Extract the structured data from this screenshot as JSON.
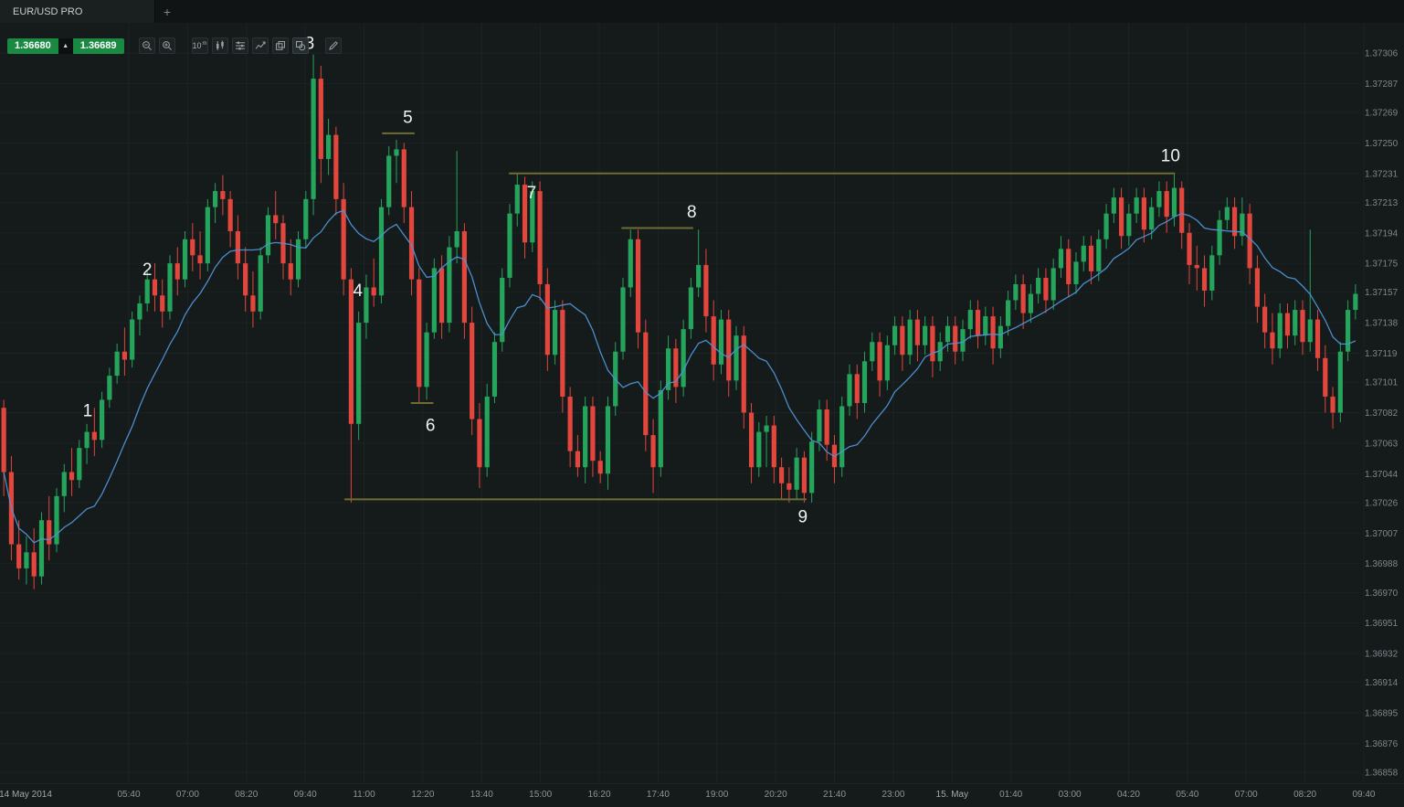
{
  "tab_bar": {
    "tabs": [
      {
        "label": "EUR/USD PRO",
        "active": true
      }
    ],
    "new_tab_label": "+"
  },
  "quote_widget": {
    "bid": "1.36680",
    "ask": "1.36689",
    "direction": "up",
    "direction_glyph": "▲"
  },
  "toolbar": {
    "buttons": [
      {
        "name": "zoom-out-button",
        "icon": "magnifier-minus",
        "group": 1
      },
      {
        "name": "zoom-in-button",
        "icon": "magnifier-plus",
        "group": 1
      },
      {
        "name": "timeframe-button",
        "icon": "text",
        "label": "10",
        "sup": "m",
        "group": 2
      },
      {
        "name": "chart-type-button",
        "icon": "candlestick",
        "group": 2
      },
      {
        "name": "indicators-button",
        "icon": "sliders",
        "group": 2
      },
      {
        "name": "chart-mode-button",
        "icon": "line-chart",
        "group": 2
      },
      {
        "name": "duplicate-chart-button",
        "icon": "copy",
        "group": 2
      },
      {
        "name": "drawing-tools-button",
        "icon": "shapes",
        "active": true,
        "group": 2
      },
      {
        "name": "edit-button",
        "icon": "pencil",
        "group": 3
      }
    ]
  },
  "colors": {
    "background": "#151a1b",
    "candle_up": "#25a45c",
    "candle_down": "#e2463d",
    "moving_average": "#4f94d6",
    "level_line": "#6e6d33",
    "annotation_text": "#eef1f1",
    "price_label": "#7e868a",
    "time_label": "#8d9498",
    "quote_green": "#1a8a42",
    "grid": "rgba(255,255,255,0.035)"
  },
  "chart_data": {
    "type": "candlestick",
    "instrument": "EUR/USD PRO",
    "timeframe": "10m",
    "price_max": 1.37306,
    "price_min": 1.36858,
    "price_axis_ticks": [
      "1.37306",
      "1.37287",
      "1.37269",
      "1.37250",
      "1.37231",
      "1.37213",
      "1.37194",
      "1.37175",
      "1.37157",
      "1.37138",
      "1.37119",
      "1.37101",
      "1.37082",
      "1.37063",
      "1.37044",
      "1.37026",
      "1.37007",
      "1.36988",
      "1.36970",
      "1.36951",
      "1.36932",
      "1.36914",
      "1.36895",
      "1.36876",
      "1.36858"
    ],
    "time_axis_ticks": [
      "14 May 2014",
      "05:40",
      "07:00",
      "08:20",
      "09:40",
      "11:00",
      "12:20",
      "13:40",
      "15:00",
      "16:20",
      "17:40",
      "19:00",
      "20:20",
      "21:40",
      "23:00",
      "15. May",
      "01:40",
      "03:00",
      "04:20",
      "05:40",
      "07:00",
      "08:20",
      "09:40"
    ],
    "moving_average_period": 12,
    "candle_fields": [
      "open",
      "high",
      "low",
      "close"
    ],
    "candles": [
      [
        1.37085,
        1.3709,
        1.3703,
        1.37045
      ],
      [
        1.37045,
        1.37055,
        1.3699,
        1.37
      ],
      [
        1.37,
        1.37015,
        1.36978,
        1.36985
      ],
      [
        1.36985,
        1.37005,
        1.36975,
        1.36995
      ],
      [
        1.36995,
        1.3701,
        1.36972,
        1.3698
      ],
      [
        1.3698,
        1.3702,
        1.36975,
        1.37015
      ],
      [
        1.37015,
        1.3703,
        1.3699,
        1.37
      ],
      [
        1.37,
        1.37035,
        1.36995,
        1.3703
      ],
      [
        1.3703,
        1.3705,
        1.3702,
        1.37045
      ],
      [
        1.37045,
        1.3706,
        1.3703,
        1.3704
      ],
      [
        1.3704,
        1.37065,
        1.37035,
        1.3706
      ],
      [
        1.3706,
        1.37075,
        1.3705,
        1.3707
      ],
      [
        1.3707,
        1.37085,
        1.37055,
        1.37065
      ],
      [
        1.37065,
        1.37095,
        1.3706,
        1.3709
      ],
      [
        1.3709,
        1.3711,
        1.37085,
        1.37105
      ],
      [
        1.37105,
        1.37125,
        1.371,
        1.3712
      ],
      [
        1.3712,
        1.37135,
        1.37105,
        1.37115
      ],
      [
        1.37115,
        1.37145,
        1.3711,
        1.3714
      ],
      [
        1.3714,
        1.37155,
        1.3713,
        1.3715
      ],
      [
        1.3715,
        1.3717,
        1.37145,
        1.37165
      ],
      [
        1.37165,
        1.37175,
        1.37145,
        1.37155
      ],
      [
        1.37155,
        1.37165,
        1.37135,
        1.37145
      ],
      [
        1.37145,
        1.3718,
        1.3714,
        1.37175
      ],
      [
        1.37175,
        1.37185,
        1.37155,
        1.37165
      ],
      [
        1.37165,
        1.37195,
        1.3716,
        1.3719
      ],
      [
        1.3719,
        1.372,
        1.3717,
        1.3718
      ],
      [
        1.3718,
        1.37195,
        1.37165,
        1.37175
      ],
      [
        1.37175,
        1.37215,
        1.3717,
        1.3721
      ],
      [
        1.3721,
        1.37225,
        1.372,
        1.3722
      ],
      [
        1.3722,
        1.3723,
        1.37205,
        1.37215
      ],
      [
        1.37215,
        1.3722,
        1.37185,
        1.37195
      ],
      [
        1.37195,
        1.37205,
        1.37165,
        1.37175
      ],
      [
        1.37175,
        1.37185,
        1.37145,
        1.37155
      ],
      [
        1.37155,
        1.3717,
        1.37135,
        1.37145
      ],
      [
        1.37145,
        1.37185,
        1.3714,
        1.3718
      ],
      [
        1.3718,
        1.3721,
        1.37175,
        1.37205
      ],
      [
        1.37205,
        1.3722,
        1.3719,
        1.372
      ],
      [
        1.372,
        1.37205,
        1.37165,
        1.37175
      ],
      [
        1.37175,
        1.3719,
        1.37155,
        1.37165
      ],
      [
        1.37165,
        1.37195,
        1.3716,
        1.3719
      ],
      [
        1.3719,
        1.3722,
        1.37185,
        1.37215
      ],
      [
        1.37215,
        1.37305,
        1.37205,
        1.3729
      ],
      [
        1.3729,
        1.37298,
        1.37225,
        1.3724
      ],
      [
        1.3724,
        1.37265,
        1.3723,
        1.37255
      ],
      [
        1.37255,
        1.3726,
        1.37205,
        1.37215
      ],
      [
        1.37215,
        1.37225,
        1.37155,
        1.37165
      ],
      [
        1.37165,
        1.37172,
        1.37026,
        1.37075
      ],
      [
        1.37075,
        1.37145,
        1.37065,
        1.37138
      ],
      [
        1.37138,
        1.37168,
        1.37128,
        1.3716
      ],
      [
        1.3716,
        1.37178,
        1.37148,
        1.37155
      ],
      [
        1.37155,
        1.37215,
        1.3715,
        1.3721
      ],
      [
        1.3721,
        1.37248,
        1.37205,
        1.37242
      ],
      [
        1.37242,
        1.37252,
        1.37225,
        1.37246
      ],
      [
        1.37246,
        1.3725,
        1.372,
        1.3721
      ],
      [
        1.3721,
        1.3722,
        1.37155,
        1.37165
      ],
      [
        1.37165,
        1.37172,
        1.37088,
        1.37098
      ],
      [
        1.37098,
        1.37138,
        1.3709,
        1.37132
      ],
      [
        1.37132,
        1.37178,
        1.37128,
        1.37172
      ],
      [
        1.37172,
        1.3718,
        1.37128,
        1.37138
      ],
      [
        1.37138,
        1.37192,
        1.37132,
        1.37185
      ],
      [
        1.37185,
        1.37245,
        1.37175,
        1.37195
      ],
      [
        1.37195,
        1.372,
        1.37128,
        1.37138
      ],
      [
        1.37138,
        1.37148,
        1.37068,
        1.37078
      ],
      [
        1.37078,
        1.37088,
        1.37035,
        1.37048
      ],
      [
        1.37048,
        1.371,
        1.37042,
        1.37092
      ],
      [
        1.37092,
        1.37132,
        1.37088,
        1.37126
      ],
      [
        1.37126,
        1.37172,
        1.3712,
        1.37166
      ],
      [
        1.37166,
        1.37212,
        1.3716,
        1.37206
      ],
      [
        1.37206,
        1.37231,
        1.37198,
        1.37224
      ],
      [
        1.37224,
        1.37229,
        1.37178,
        1.37188
      ],
      [
        1.37188,
        1.37226,
        1.37182,
        1.3722
      ],
      [
        1.3722,
        1.37226,
        1.37152,
        1.37162
      ],
      [
        1.37162,
        1.37172,
        1.37108,
        1.37118
      ],
      [
        1.37118,
        1.37152,
        1.37112,
        1.37146
      ],
      [
        1.37146,
        1.37152,
        1.37082,
        1.37092
      ],
      [
        1.37092,
        1.37098,
        1.37048,
        1.37058
      ],
      [
        1.37058,
        1.37068,
        1.37042,
        1.37048
      ],
      [
        1.37048,
        1.37092,
        1.37038,
        1.37086
      ],
      [
        1.37086,
        1.37092,
        1.37042,
        1.37052
      ],
      [
        1.37052,
        1.37058,
        1.37038,
        1.37044
      ],
      [
        1.37044,
        1.37092,
        1.37034,
        1.37086
      ],
      [
        1.37086,
        1.37126,
        1.3708,
        1.3712
      ],
      [
        1.3712,
        1.37166,
        1.37115,
        1.3716
      ],
      [
        1.3716,
        1.37196,
        1.37154,
        1.3719
      ],
      [
        1.3719,
        1.37196,
        1.37122,
        1.37132
      ],
      [
        1.37132,
        1.3714,
        1.37058,
        1.37068
      ],
      [
        1.37068,
        1.37078,
        1.37032,
        1.37048
      ],
      [
        1.37048,
        1.37102,
        1.37042,
        1.37096
      ],
      [
        1.37096,
        1.3713,
        1.3709,
        1.37122
      ],
      [
        1.37122,
        1.37128,
        1.37088,
        1.37098
      ],
      [
        1.37098,
        1.3714,
        1.37092,
        1.37134
      ],
      [
        1.37134,
        1.37166,
        1.37128,
        1.3716
      ],
      [
        1.3716,
        1.37196,
        1.37154,
        1.37174
      ],
      [
        1.37174,
        1.37184,
        1.37132,
        1.37142
      ],
      [
        1.37142,
        1.37152,
        1.37102,
        1.37112
      ],
      [
        1.37112,
        1.37146,
        1.37106,
        1.3714
      ],
      [
        1.3714,
        1.37146,
        1.37092,
        1.37102
      ],
      [
        1.37102,
        1.37136,
        1.37096,
        1.3713
      ],
      [
        1.3713,
        1.37136,
        1.37072,
        1.37082
      ],
      [
        1.37082,
        1.37088,
        1.37038,
        1.37048
      ],
      [
        1.37048,
        1.37076,
        1.37042,
        1.3707
      ],
      [
        1.3707,
        1.3708,
        1.37048,
        1.37074
      ],
      [
        1.37074,
        1.3708,
        1.37038,
        1.37048
      ],
      [
        1.37048,
        1.37054,
        1.37028,
        1.37038
      ],
      [
        1.37038,
        1.37048,
        1.37026,
        1.37034
      ],
      [
        1.37034,
        1.3706,
        1.37028,
        1.37054
      ],
      [
        1.37054,
        1.37058,
        1.37026,
        1.37032
      ],
      [
        1.37032,
        1.3707,
        1.37026,
        1.37064
      ],
      [
        1.37064,
        1.3709,
        1.37058,
        1.37084
      ],
      [
        1.37084,
        1.3709,
        1.37052,
        1.37062
      ],
      [
        1.37062,
        1.37068,
        1.37038,
        1.37048
      ],
      [
        1.37048,
        1.37092,
        1.37042,
        1.37086
      ],
      [
        1.37086,
        1.37112,
        1.3708,
        1.37106
      ],
      [
        1.37106,
        1.37112,
        1.37078,
        1.37088
      ],
      [
        1.37088,
        1.3712,
        1.37082,
        1.37114
      ],
      [
        1.37114,
        1.37132,
        1.37108,
        1.37126
      ],
      [
        1.37126,
        1.37132,
        1.37092,
        1.37102
      ],
      [
        1.37102,
        1.3713,
        1.37096,
        1.37124
      ],
      [
        1.37124,
        1.37142,
        1.37118,
        1.37136
      ],
      [
        1.37136,
        1.37142,
        1.37108,
        1.37118
      ],
      [
        1.37118,
        1.37146,
        1.37112,
        1.3714
      ],
      [
        1.3714,
        1.37146,
        1.37114,
        1.37124
      ],
      [
        1.37124,
        1.37142,
        1.37118,
        1.37136
      ],
      [
        1.37136,
        1.37142,
        1.37104,
        1.37114
      ],
      [
        1.37114,
        1.37132,
        1.37108,
        1.37126
      ],
      [
        1.37126,
        1.37142,
        1.3712,
        1.37136
      ],
      [
        1.37136,
        1.37142,
        1.37112,
        1.3712
      ],
      [
        1.3712,
        1.3714,
        1.37114,
        1.37134
      ],
      [
        1.37134,
        1.37152,
        1.37128,
        1.37146
      ],
      [
        1.37146,
        1.37152,
        1.37122,
        1.3713
      ],
      [
        1.3713,
        1.37148,
        1.37124,
        1.37142
      ],
      [
        1.37142,
        1.37148,
        1.37112,
        1.37122
      ],
      [
        1.37122,
        1.37142,
        1.37116,
        1.37136
      ],
      [
        1.37136,
        1.37158,
        1.3713,
        1.37152
      ],
      [
        1.37152,
        1.37168,
        1.37146,
        1.37162
      ],
      [
        1.37162,
        1.37168,
        1.37134,
        1.37144
      ],
      [
        1.37144,
        1.37162,
        1.37138,
        1.37156
      ],
      [
        1.37156,
        1.37172,
        1.3715,
        1.37166
      ],
      [
        1.37166,
        1.37172,
        1.37144,
        1.37152
      ],
      [
        1.37152,
        1.37178,
        1.37146,
        1.37172
      ],
      [
        1.37172,
        1.37192,
        1.37166,
        1.37184
      ],
      [
        1.37184,
        1.3719,
        1.37154,
        1.37162
      ],
      [
        1.37162,
        1.37182,
        1.37156,
        1.37176
      ],
      [
        1.37176,
        1.37192,
        1.3717,
        1.37186
      ],
      [
        1.37186,
        1.37192,
        1.37162,
        1.3717
      ],
      [
        1.3717,
        1.37196,
        1.37164,
        1.3719
      ],
      [
        1.3719,
        1.37212,
        1.37184,
        1.37206
      ],
      [
        1.37206,
        1.37222,
        1.372,
        1.37216
      ],
      [
        1.37216,
        1.37222,
        1.37184,
        1.37192
      ],
      [
        1.37192,
        1.37212,
        1.37186,
        1.37206
      ],
      [
        1.37206,
        1.37222,
        1.372,
        1.37216
      ],
      [
        1.37216,
        1.37222,
        1.37188,
        1.37196
      ],
      [
        1.37196,
        1.37216,
        1.3719,
        1.3721
      ],
      [
        1.3721,
        1.37226,
        1.37204,
        1.3722
      ],
      [
        1.3722,
        1.37226,
        1.37194,
        1.37204
      ],
      [
        1.37204,
        1.37231,
        1.37198,
        1.37222
      ],
      [
        1.37222,
        1.37226,
        1.37184,
        1.37194
      ],
      [
        1.37194,
        1.372,
        1.37162,
        1.37174
      ],
      [
        1.37174,
        1.37186,
        1.37158,
        1.37172
      ],
      [
        1.37172,
        1.3718,
        1.37148,
        1.37158
      ],
      [
        1.37158,
        1.37186,
        1.37152,
        1.3718
      ],
      [
        1.3718,
        1.37208,
        1.37174,
        1.37202
      ],
      [
        1.37202,
        1.37216,
        1.37196,
        1.3721
      ],
      [
        1.3721,
        1.37216,
        1.37184,
        1.37192
      ],
      [
        1.37192,
        1.37216,
        1.37186,
        1.37206
      ],
      [
        1.37206,
        1.37212,
        1.37162,
        1.37172
      ],
      [
        1.37172,
        1.3718,
        1.37138,
        1.37148
      ],
      [
        1.37148,
        1.37156,
        1.37122,
        1.37132
      ],
      [
        1.37132,
        1.37144,
        1.37112,
        1.37122
      ],
      [
        1.37122,
        1.3715,
        1.37116,
        1.37144
      ],
      [
        1.37144,
        1.3715,
        1.37122,
        1.3713
      ],
      [
        1.3713,
        1.37152,
        1.37124,
        1.37146
      ],
      [
        1.37146,
        1.37152,
        1.37118,
        1.37126
      ],
      [
        1.37126,
        1.37196,
        1.3712,
        1.3714
      ],
      [
        1.3714,
        1.37146,
        1.37108,
        1.37116
      ],
      [
        1.37116,
        1.37124,
        1.37082,
        1.37092
      ],
      [
        1.37092,
        1.37098,
        1.37072,
        1.37082
      ],
      [
        1.37082,
        1.37126,
        1.37076,
        1.3712
      ],
      [
        1.3712,
        1.37152,
        1.37114,
        1.37146
      ],
      [
        1.37146,
        1.37162,
        1.3714,
        1.37156
      ]
    ],
    "annotations": [
      {
        "n": "1",
        "idx": 11.6,
        "price": 1.37083
      },
      {
        "n": "2",
        "idx": 19.5,
        "price": 1.37171
      },
      {
        "n": "3",
        "idx": 41.0,
        "price": 1.37312
      },
      {
        "n": "4",
        "idx": 47.4,
        "price": 1.37158
      },
      {
        "n": "5",
        "idx": 54.0,
        "price": 1.37266
      },
      {
        "n": "6",
        "idx": 57.0,
        "price": 1.37074
      },
      {
        "n": "7",
        "idx": 70.4,
        "price": 1.37219
      },
      {
        "n": "8",
        "idx": 91.6,
        "price": 1.37207
      },
      {
        "n": "9",
        "idx": 106.3,
        "price": 1.37017
      },
      {
        "n": "10",
        "idx": 155.0,
        "price": 1.37242
      }
    ],
    "levels": [
      {
        "n": "5",
        "price": 1.37256,
        "from": 50.6,
        "to": 54.9
      },
      {
        "n": "6",
        "price": 1.37088,
        "from": 54.4,
        "to": 57.4
      },
      {
        "n": "7-10",
        "price": 1.37231,
        "from": 67.4,
        "to": 155.6
      },
      {
        "n": "8",
        "price": 1.37197,
        "from": 82.3,
        "to": 91.8
      },
      {
        "n": "9",
        "price": 1.37028,
        "from": 45.6,
        "to": 106.8
      }
    ]
  }
}
